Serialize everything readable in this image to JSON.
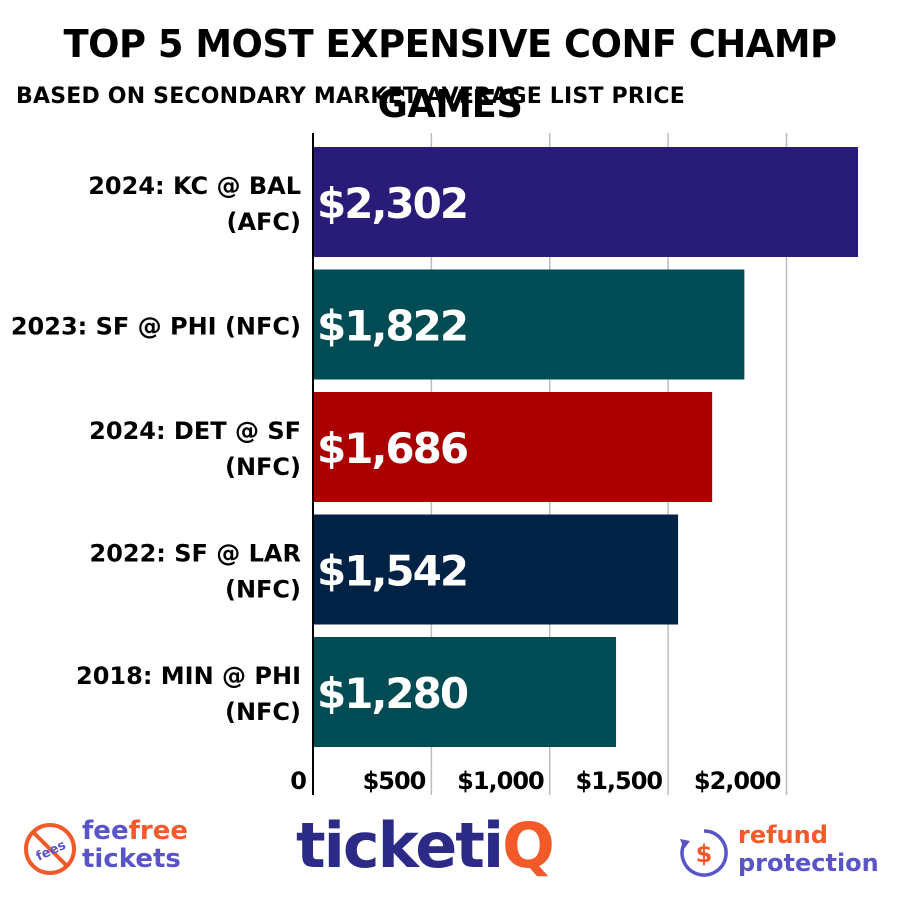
{
  "chart_data": {
    "type": "bar",
    "orientation": "horizontal",
    "title": "TOP 5 MOST EXPENSIVE CONF CHAMP GAMES",
    "subtitle": "BASED ON SECONDARY MARKET AVERAGE LIST PRICE",
    "categories": [
      [
        "2024: KC @ BAL",
        "(AFC)"
      ],
      [
        "2023: SF @ PHI (NFC)"
      ],
      [
        "2024: DET @ SF",
        "(NFC)"
      ],
      [
        "2022: SF @ LAR",
        "(NFC)"
      ],
      [
        "2018: MIN @ PHI",
        "(NFC)"
      ]
    ],
    "values": [
      2302,
      1822,
      1686,
      1542,
      1280
    ],
    "value_labels": [
      "$2,302",
      "$1,822",
      "$1,686",
      "$1,542",
      "$1,280"
    ],
    "bar_colors": [
      "#291B78",
      "#004C54",
      "#AA0000",
      "#002244",
      "#004C54"
    ],
    "x_ticks": [
      0,
      500,
      1000,
      1500,
      2000
    ],
    "x_tick_labels": [
      "0",
      "$500",
      "$1,000",
      "$1,500",
      "$2,000"
    ],
    "xlim": [
      0,
      2302
    ],
    "grid": true,
    "xlabel": "",
    "ylabel": ""
  },
  "footer": {
    "fee_icon_text": "fees",
    "fee_line1_a": "fee",
    "fee_line1_b": "free",
    "fee_line2": "tickets",
    "brand_a": "ticketi",
    "brand_b": "Q",
    "refund_line1": "refund",
    "refund_line2": "protection",
    "refund_icon_symbol": "$",
    "colors": {
      "orange": "#f25a2a",
      "purple": "#5a54c9",
      "navy": "#2b2a86"
    }
  }
}
